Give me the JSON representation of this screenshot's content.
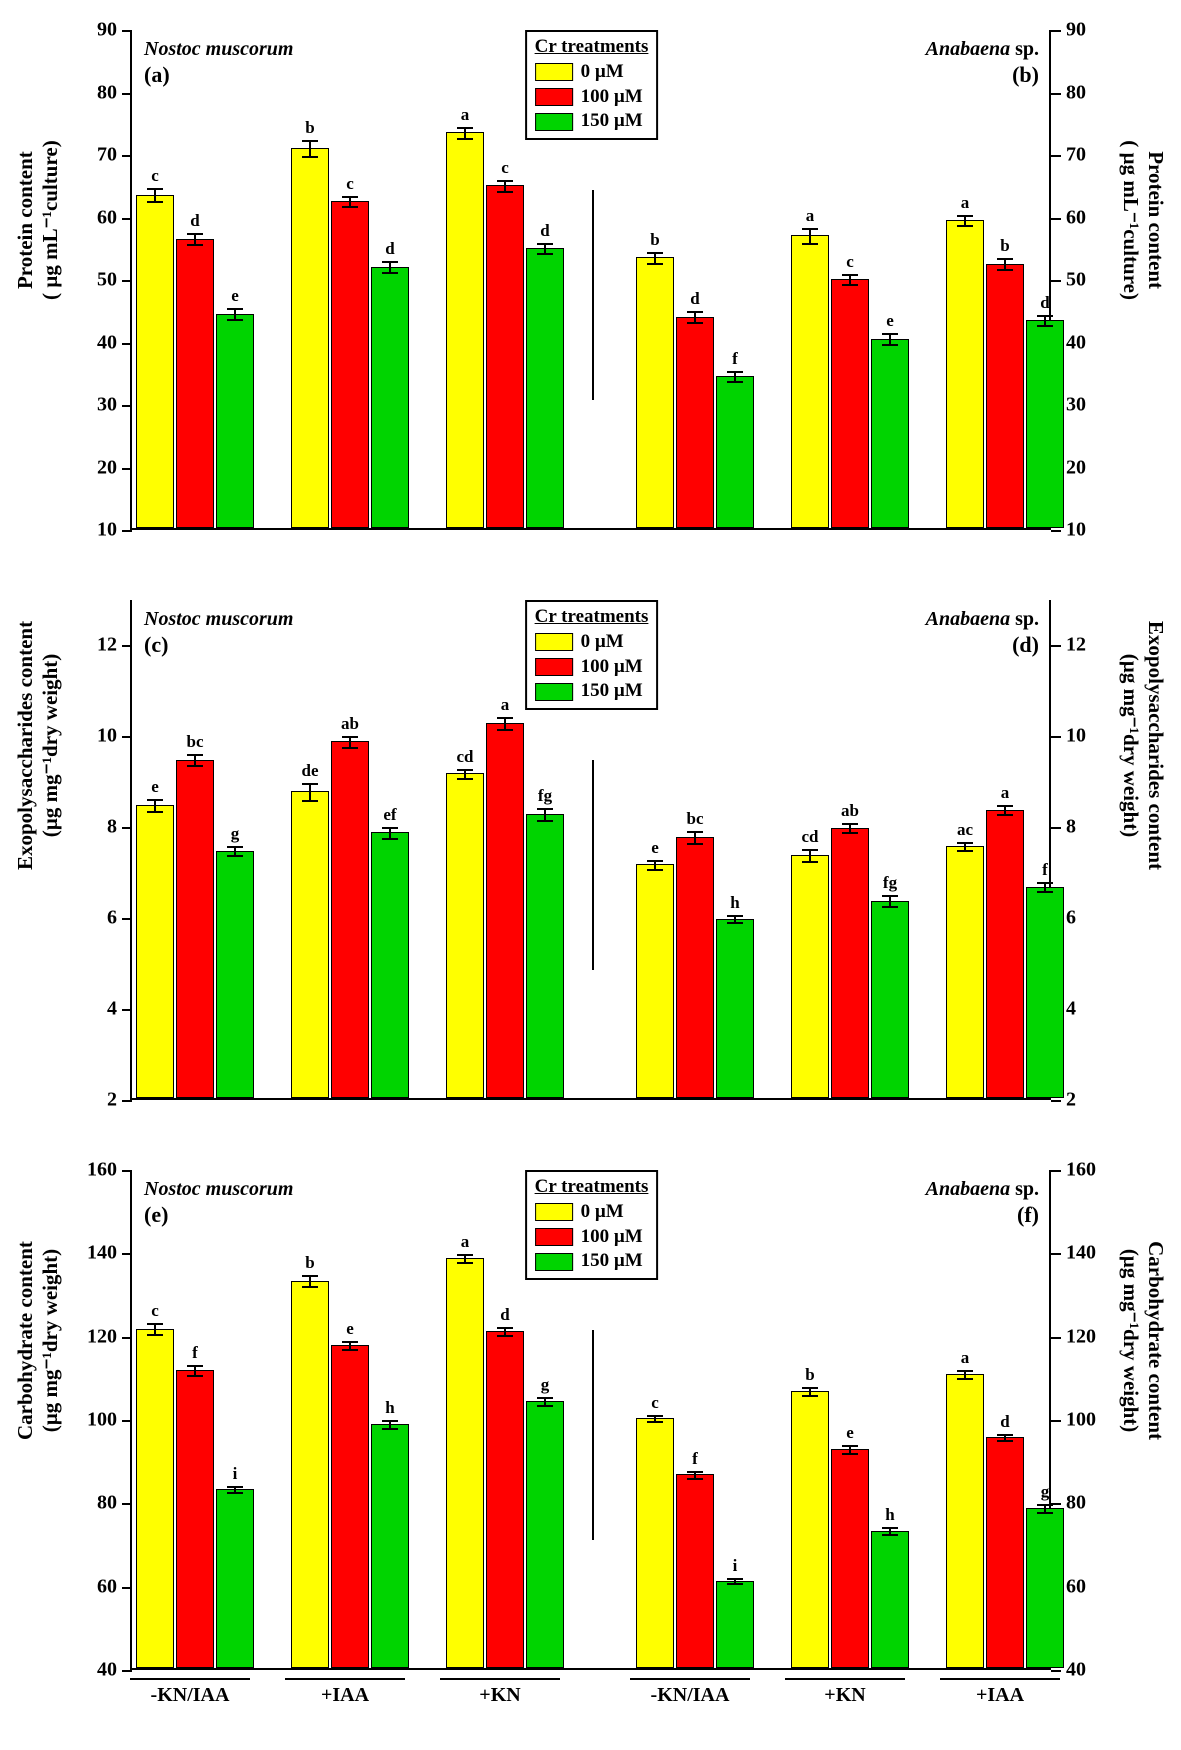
{
  "legend": {
    "title": "Cr treatments",
    "items": [
      {
        "label": "0 µM",
        "color": "#ffff00"
      },
      {
        "label": "100 µM",
        "color": "#ff0000"
      },
      {
        "label": "150 µM",
        "color": "#00d400"
      }
    ]
  },
  "x_groups_left": [
    "-KN/IAA",
    "+IAA",
    "+KN"
  ],
  "x_groups_right": [
    "-KN/IAA",
    "+KN",
    "+IAA"
  ],
  "species_left": "Nostoc muscorum",
  "species_right": "Anabaena sp.",
  "colors": {
    "c0": "#ffff00",
    "c1": "#ff0000",
    "c2": "#00d400"
  },
  "panels": [
    {
      "row": 0,
      "show_legend": true,
      "show_xlabels": false,
      "letters": [
        "(a)",
        "(b)"
      ],
      "y_axis_label": "Protein content\n( µg mL⁻¹culture)",
      "y_min": 10,
      "y_max": 90,
      "y_step": 10,
      "data_left": [
        {
          "vals": [
            63,
            56,
            44
          ],
          "err": [
            1.2,
            1,
            1
          ],
          "sig": [
            "c",
            "d",
            "e"
          ]
        },
        {
          "vals": [
            70.5,
            62,
            51.5
          ],
          "err": [
            1.5,
            1,
            1
          ],
          "sig": [
            "b",
            "c",
            "d"
          ]
        },
        {
          "vals": [
            73,
            64.5,
            54.5
          ],
          "err": [
            1,
            1,
            1
          ],
          "sig": [
            "a",
            "c",
            "d"
          ]
        }
      ],
      "data_right": [
        {
          "vals": [
            53,
            43.5,
            34
          ],
          "err": [
            1,
            1,
            1
          ],
          "sig": [
            "b",
            "d",
            "f"
          ]
        },
        {
          "vals": [
            56.5,
            49.5,
            40
          ],
          "err": [
            1.3,
            1,
            1
          ],
          "sig": [
            "a",
            "c",
            "e"
          ]
        },
        {
          "vals": [
            59,
            52,
            43
          ],
          "err": [
            1,
            1,
            1
          ],
          "sig": [
            "a",
            "b",
            "d"
          ]
        }
      ]
    },
    {
      "row": 1,
      "show_legend": true,
      "show_xlabels": false,
      "letters": [
        "(c)",
        "(d)"
      ],
      "y_axis_label": "Exopolysaccharides content\n(µg mg⁻¹dry weight)",
      "y_min": 2,
      "y_max": 13,
      "y_step": 2,
      "data_left": [
        {
          "vals": [
            8.4,
            9.4,
            7.4
          ],
          "err": [
            0.15,
            0.15,
            0.12
          ],
          "sig": [
            "e",
            "bc",
            "g"
          ]
        },
        {
          "vals": [
            8.7,
            9.8,
            7.8
          ],
          "err": [
            0.2,
            0.15,
            0.15
          ],
          "sig": [
            "de",
            "ab",
            "ef"
          ]
        },
        {
          "vals": [
            9.1,
            10.2,
            8.2
          ],
          "err": [
            0.12,
            0.15,
            0.15
          ],
          "sig": [
            "cd",
            "a",
            "fg"
          ]
        }
      ],
      "data_right": [
        {
          "vals": [
            7.1,
            7.7,
            5.9
          ],
          "err": [
            0.12,
            0.15,
            0.1
          ],
          "sig": [
            "e",
            "bc",
            "h"
          ]
        },
        {
          "vals": [
            7.3,
            7.9,
            6.3
          ],
          "err": [
            0.15,
            0.12,
            0.15
          ],
          "sig": [
            "cd",
            "ab",
            "fg"
          ]
        },
        {
          "vals": [
            7.5,
            8.3,
            6.6
          ],
          "err": [
            0.12,
            0.12,
            0.12
          ],
          "sig": [
            "ac",
            "a",
            "f"
          ]
        }
      ]
    },
    {
      "row": 2,
      "show_legend": true,
      "show_xlabels": true,
      "letters": [
        "(e)",
        "(f)"
      ],
      "y_axis_label": "Carbohydrate content\n(µg mg⁻¹dry weight)",
      "y_min": 40,
      "y_max": 160,
      "y_step": 20,
      "data_left": [
        {
          "vals": [
            121,
            111,
            82.5
          ],
          "err": [
            1.5,
            1.5,
            1
          ],
          "sig": [
            "c",
            "f",
            "i"
          ]
        },
        {
          "vals": [
            132.5,
            117,
            98
          ],
          "err": [
            1.5,
            1.2,
            1.2
          ],
          "sig": [
            "b",
            "e",
            "h"
          ]
        },
        {
          "vals": [
            138,
            120.5,
            103.5
          ],
          "err": [
            1.2,
            1.2,
            1.2
          ],
          "sig": [
            "a",
            "d",
            "g"
          ]
        }
      ],
      "data_right": [
        {
          "vals": [
            99.5,
            86,
            60.5
          ],
          "err": [
            1,
            1,
            0.8
          ],
          "sig": [
            "c",
            "f",
            "i"
          ]
        },
        {
          "vals": [
            106,
            92,
            72.5
          ],
          "err": [
            1.2,
            1.2,
            1
          ],
          "sig": [
            "b",
            "e",
            "h"
          ]
        },
        {
          "vals": [
            110,
            95,
            78
          ],
          "err": [
            1.2,
            1,
            1.2
          ],
          "sig": [
            "a",
            "d",
            "g"
          ]
        }
      ]
    }
  ]
}
